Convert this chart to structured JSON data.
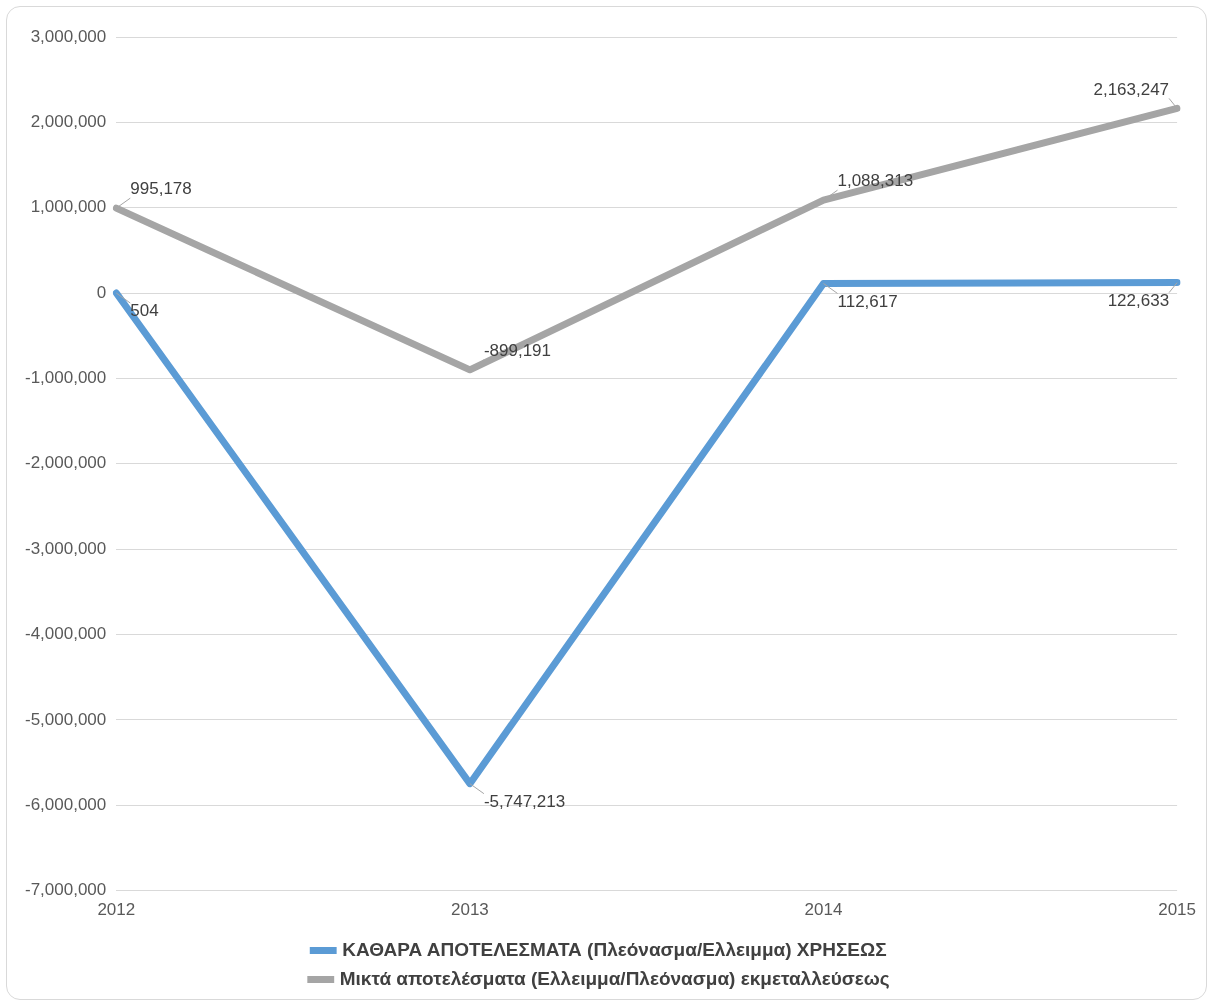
{
  "chart_data": {
    "type": "line",
    "categories": [
      "2012",
      "2013",
      "2014",
      "2015"
    ],
    "series": [
      {
        "name": "ΚΑΘΑΡΑ ΑΠΟΤΕΛΕΣΜΑΤΑ (Πλεόνασμα/Ελλειμμα) ΧΡΗΣΕΩΣ",
        "color": "#5b9bd5",
        "values": [
          504,
          -5747213,
          112617,
          122633
        ],
        "value_labels": [
          "504",
          "-5,747,213",
          "112,617",
          "122,633"
        ]
      },
      {
        "name": "Μικτά αποτελέσματα (Ελλειμμα/Πλεόνασμα) εκμεταλλεύσεως",
        "color": "#a5a5a5",
        "values": [
          995178,
          -899191,
          1088313,
          2163247
        ],
        "value_labels": [
          "995,178",
          "-899,191",
          "1,088,313",
          "2,163,247"
        ]
      }
    ],
    "ylim": [
      -7000000,
      3000000
    ],
    "yticks": [
      {
        "value": -7000000,
        "label": "-7,000,000"
      },
      {
        "value": -6000000,
        "label": "-6,000,000"
      },
      {
        "value": -5000000,
        "label": "-5,000,000"
      },
      {
        "value": -4000000,
        "label": "-4,000,000"
      },
      {
        "value": -3000000,
        "label": "-3,000,000"
      },
      {
        "value": -2000000,
        "label": "-2,000,000"
      },
      {
        "value": -1000000,
        "label": "-1,000,000"
      },
      {
        "value": 0,
        "label": "0"
      },
      {
        "value": 1000000,
        "label": "1,000,000"
      },
      {
        "value": 2000000,
        "label": "2,000,000"
      },
      {
        "value": 3000000,
        "label": "3,000,000"
      }
    ],
    "grid": "y",
    "legend": "bottom",
    "marker": "none",
    "line_style": "solid"
  }
}
